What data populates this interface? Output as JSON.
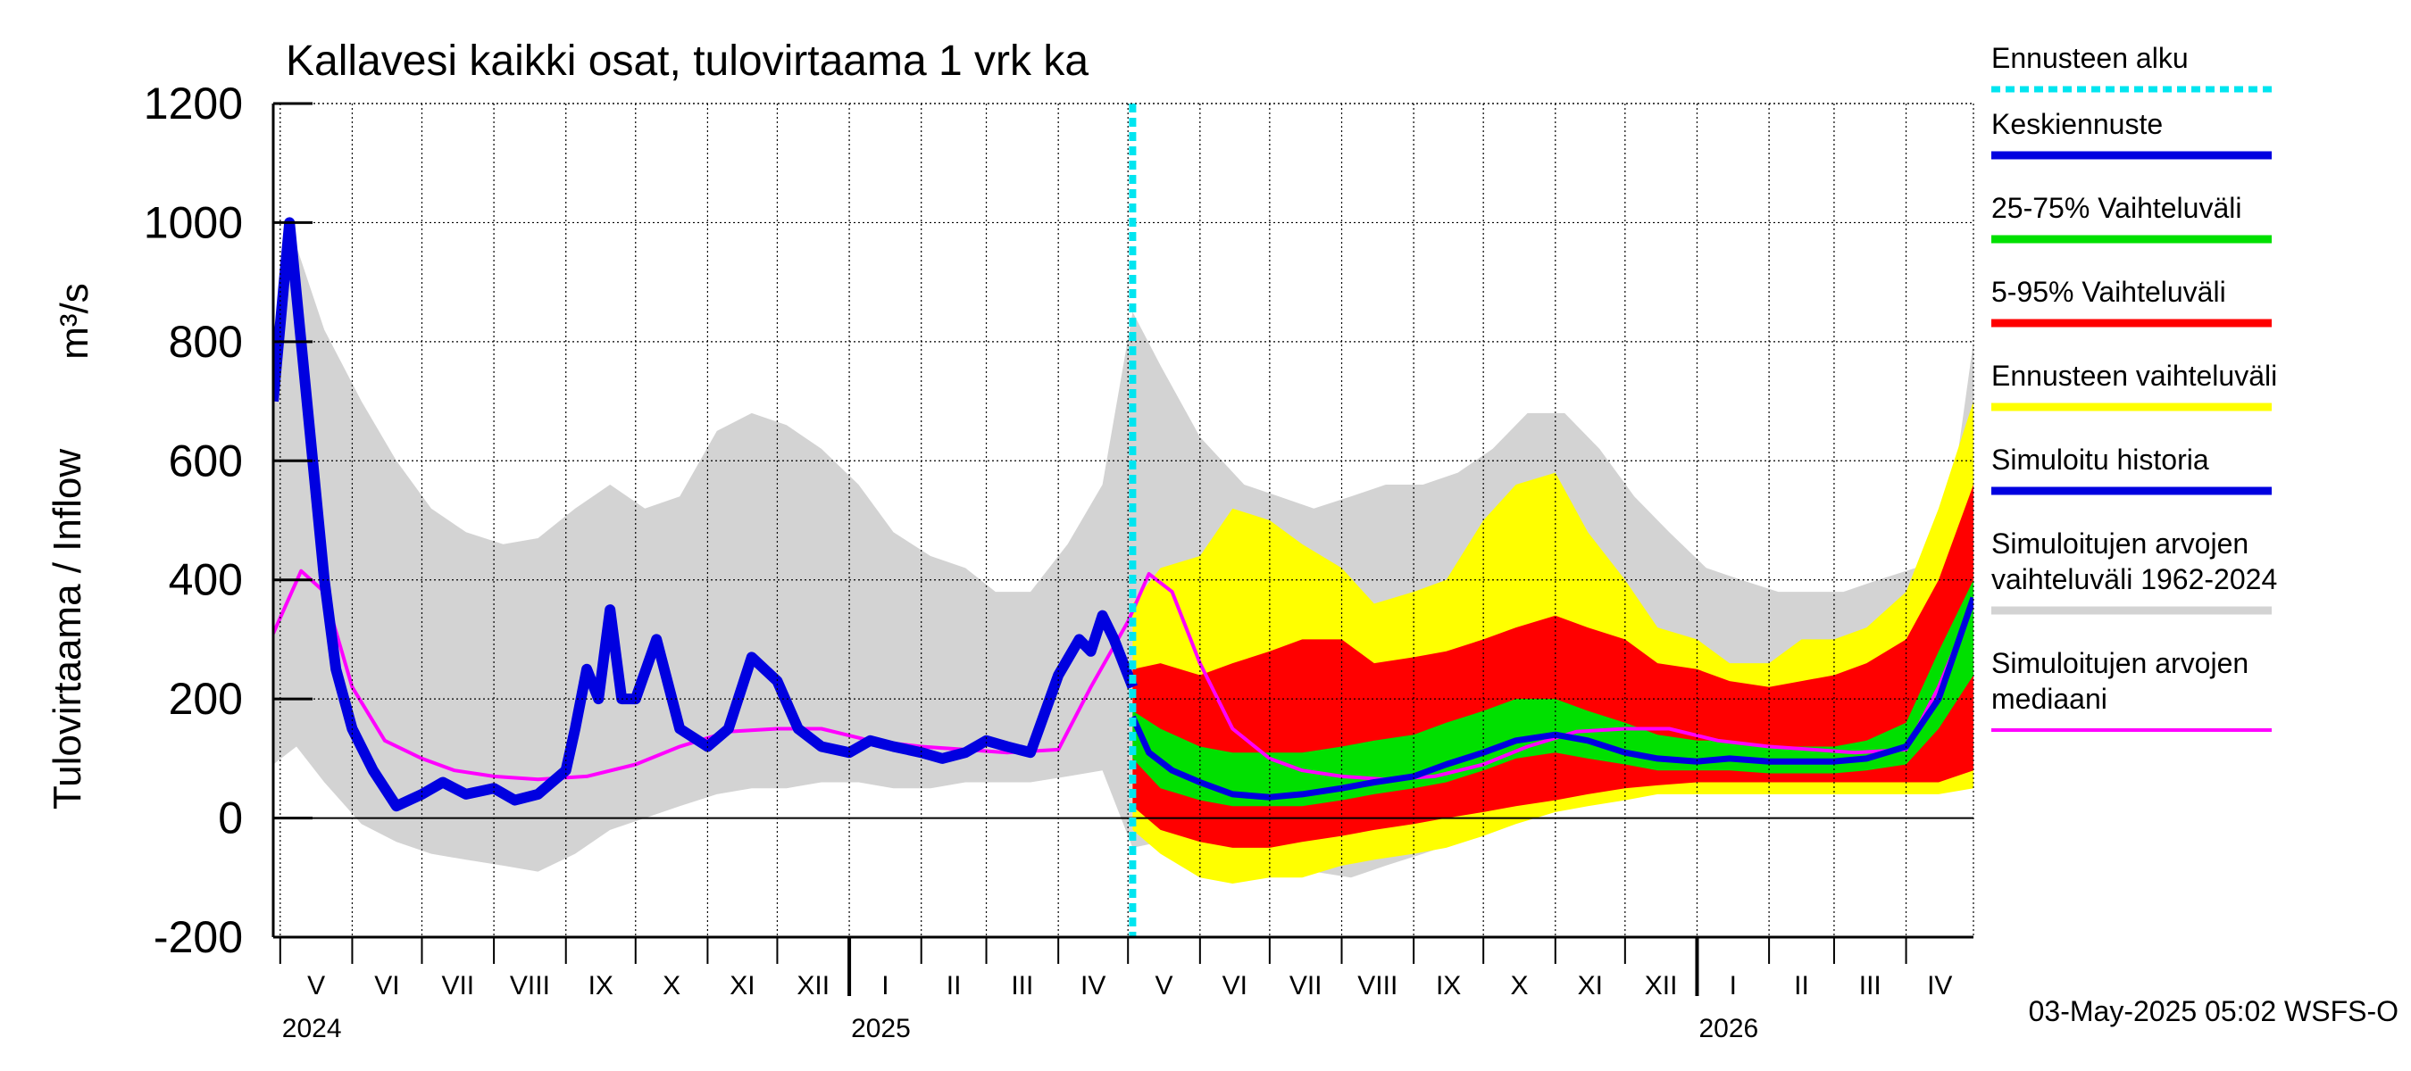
{
  "chart_data": {
    "type": "area",
    "title": "Kallavesi kaikki osat, tulovirtaama 1 vrk ka",
    "ylabel": "Tulovirtaama / Inflow",
    "yunit": "m³/s",
    "ylim": [
      -200,
      1200
    ],
    "yticks": [
      -200,
      0,
      200,
      400,
      600,
      800,
      1000,
      1200
    ],
    "xlim": [
      "2024-04-28",
      "2026-04-30"
    ],
    "grid": true,
    "legend_position": "right",
    "footer": "03-May-2025 05:02 WSFS-O",
    "forecast_start": "2025-05-03",
    "years": [
      {
        "label": "2024",
        "date": "2024-05-01"
      },
      {
        "label": "2025",
        "date": "2025-01-01"
      },
      {
        "label": "2026",
        "date": "2026-01-01"
      }
    ],
    "months": [
      {
        "label": "V",
        "date": "2024-05-01"
      },
      {
        "label": "VI",
        "date": "2024-06-01"
      },
      {
        "label": "VII",
        "date": "2024-07-01"
      },
      {
        "label": "VIII",
        "date": "2024-08-01"
      },
      {
        "label": "IX",
        "date": "2024-09-01"
      },
      {
        "label": "X",
        "date": "2024-10-01"
      },
      {
        "label": "XI",
        "date": "2024-11-01"
      },
      {
        "label": "XII",
        "date": "2024-12-01"
      },
      {
        "label": "I",
        "date": "2025-01-01"
      },
      {
        "label": "II",
        "date": "2025-02-01"
      },
      {
        "label": "III",
        "date": "2025-03-01"
      },
      {
        "label": "IV",
        "date": "2025-04-01"
      },
      {
        "label": "V",
        "date": "2025-05-01"
      },
      {
        "label": "VI",
        "date": "2025-06-01"
      },
      {
        "label": "VII",
        "date": "2025-07-01"
      },
      {
        "label": "VIII",
        "date": "2025-08-01"
      },
      {
        "label": "IX",
        "date": "2025-09-01"
      },
      {
        "label": "X",
        "date": "2025-10-01"
      },
      {
        "label": "XI",
        "date": "2025-11-01"
      },
      {
        "label": "XII",
        "date": "2025-12-01"
      },
      {
        "label": "I",
        "date": "2026-01-01"
      },
      {
        "label": "II",
        "date": "2026-02-01"
      },
      {
        "label": "III",
        "date": "2026-03-01"
      },
      {
        "label": "IV",
        "date": "2026-04-01"
      }
    ],
    "legend": [
      {
        "label": "Ennusteen alku",
        "color": "#00e5f0",
        "style": "dashed"
      },
      {
        "label": "Keskiennuste",
        "color": "#0000e0",
        "style": "solid"
      },
      {
        "label": "25-75% Vaihteluväli",
        "color": "#00e000",
        "style": "solid"
      },
      {
        "label": "5-95% Vaihteluväli",
        "color": "#ff0000",
        "style": "solid"
      },
      {
        "label": "Ennusteen vaihteluväli",
        "color": "#ffff00",
        "style": "solid"
      },
      {
        "label": "Simuloitu historia",
        "color": "#0000e0",
        "style": "solid"
      },
      {
        "label": "Simuloitujen arvojen\nvaihteluväli 1962-2024",
        "color": "#d3d3d3",
        "style": "solid"
      },
      {
        "label": "Simuloitujen arvojen\nmediaani",
        "color": "#ff00ff",
        "style": "solid"
      }
    ],
    "series": [
      {
        "name": "Simuloitujen arvojen vaihteluväli 1962-2024",
        "kind": "band",
        "color": "#d3d3d3",
        "x": [
          "2024-04-28",
          "2024-05-08",
          "2024-05-20",
          "2024-06-05",
          "2024-06-20",
          "2024-07-05",
          "2024-07-20",
          "2024-08-05",
          "2024-08-20",
          "2024-09-05",
          "2024-09-20",
          "2024-10-05",
          "2024-10-20",
          "2024-11-05",
          "2024-11-20",
          "2024-12-05",
          "2024-12-20",
          "2025-01-05",
          "2025-01-20",
          "2025-02-05",
          "2025-02-20",
          "2025-03-05",
          "2025-03-20",
          "2025-04-05",
          "2025-04-20",
          "2025-05-03",
          "2025-05-15",
          "2025-06-01",
          "2025-06-20",
          "2025-07-05",
          "2025-07-20",
          "2025-08-05",
          "2025-08-20",
          "2025-09-05",
          "2025-09-20",
          "2025-10-05",
          "2025-10-20",
          "2025-11-05",
          "2025-11-20",
          "2025-12-05",
          "2025-12-20",
          "2026-01-05",
          "2026-01-20",
          "2026-02-05",
          "2026-02-20",
          "2026-03-05",
          "2026-03-20",
          "2026-04-05",
          "2026-04-20",
          "2026-04-30"
        ],
        "lower": [
          90,
          120,
          60,
          -10,
          -40,
          -60,
          -70,
          -80,
          -90,
          -60,
          -20,
          0,
          20,
          40,
          50,
          50,
          60,
          60,
          50,
          50,
          60,
          60,
          60,
          70,
          80,
          -50,
          -40,
          -40,
          -60,
          -90,
          -90,
          -100,
          -80,
          -60,
          -40,
          -20,
          0,
          20,
          40,
          50,
          50,
          60,
          60,
          50,
          50,
          60,
          60,
          60,
          60,
          70
        ],
        "upper": [
          800,
          960,
          820,
          700,
          600,
          520,
          480,
          460,
          470,
          520,
          560,
          520,
          540,
          650,
          680,
          660,
          620,
          560,
          480,
          440,
          420,
          380,
          380,
          460,
          560,
          850,
          760,
          640,
          560,
          540,
          520,
          540,
          560,
          560,
          580,
          620,
          680,
          680,
          620,
          540,
          480,
          420,
          400,
          380,
          380,
          380,
          400,
          420,
          520,
          800
        ]
      },
      {
        "name": "Ennusteen vaihteluväli",
        "kind": "band",
        "color": "#ffff00",
        "x": [
          "2025-05-03",
          "2025-05-15",
          "2025-06-01",
          "2025-06-15",
          "2025-07-01",
          "2025-07-15",
          "2025-08-01",
          "2025-08-15",
          "2025-09-01",
          "2025-09-15",
          "2025-10-01",
          "2025-10-15",
          "2025-11-01",
          "2025-11-15",
          "2025-12-01",
          "2025-12-15",
          "2026-01-01",
          "2026-01-15",
          "2026-02-01",
          "2026-02-15",
          "2026-03-01",
          "2026-03-15",
          "2026-04-01",
          "2026-04-15",
          "2026-04-30"
        ],
        "lower": [
          -20,
          -60,
          -100,
          -110,
          -100,
          -100,
          -80,
          -70,
          -60,
          -50,
          -30,
          -10,
          10,
          20,
          30,
          40,
          40,
          40,
          40,
          40,
          40,
          40,
          40,
          40,
          50
        ],
        "upper": [
          360,
          420,
          440,
          520,
          500,
          460,
          420,
          360,
          380,
          400,
          500,
          560,
          580,
          480,
          400,
          320,
          300,
          260,
          260,
          300,
          300,
          320,
          380,
          520,
          700
        ]
      },
      {
        "name": "5-95% Vaihteluväli",
        "kind": "band",
        "color": "#ff0000",
        "x": [
          "2025-05-03",
          "2025-05-15",
          "2025-06-01",
          "2025-06-15",
          "2025-07-01",
          "2025-07-15",
          "2025-08-01",
          "2025-08-15",
          "2025-09-01",
          "2025-09-15",
          "2025-10-01",
          "2025-10-15",
          "2025-11-01",
          "2025-11-15",
          "2025-12-01",
          "2025-12-15",
          "2026-01-01",
          "2026-01-15",
          "2026-02-01",
          "2026-02-15",
          "2026-03-01",
          "2026-03-15",
          "2026-04-01",
          "2026-04-15",
          "2026-04-30"
        ],
        "lower": [
          20,
          -20,
          -40,
          -50,
          -50,
          -40,
          -30,
          -20,
          -10,
          0,
          10,
          20,
          30,
          40,
          50,
          55,
          60,
          60,
          60,
          60,
          60,
          60,
          60,
          60,
          80
        ],
        "upper": [
          250,
          260,
          240,
          260,
          280,
          300,
          300,
          260,
          270,
          280,
          300,
          320,
          340,
          320,
          300,
          260,
          250,
          230,
          220,
          230,
          240,
          260,
          300,
          400,
          560
        ]
      },
      {
        "name": "25-75% Vaihteluväli",
        "kind": "band",
        "color": "#00e000",
        "x": [
          "2025-05-03",
          "2025-05-15",
          "2025-06-01",
          "2025-06-15",
          "2025-07-01",
          "2025-07-15",
          "2025-08-01",
          "2025-08-15",
          "2025-09-01",
          "2025-09-15",
          "2025-10-01",
          "2025-10-15",
          "2025-11-01",
          "2025-11-15",
          "2025-12-01",
          "2025-12-15",
          "2026-01-01",
          "2026-01-15",
          "2026-02-01",
          "2026-02-15",
          "2026-03-01",
          "2026-03-15",
          "2026-04-01",
          "2026-04-15",
          "2026-04-30"
        ],
        "lower": [
          100,
          50,
          30,
          20,
          20,
          20,
          30,
          40,
          50,
          60,
          80,
          100,
          110,
          100,
          90,
          80,
          80,
          80,
          75,
          75,
          75,
          80,
          90,
          150,
          240
        ],
        "upper": [
          180,
          150,
          120,
          110,
          110,
          110,
          120,
          130,
          140,
          160,
          180,
          200,
          200,
          180,
          160,
          140,
          130,
          130,
          120,
          120,
          120,
          130,
          160,
          280,
          400
        ]
      },
      {
        "name": "Simuloitujen arvojen mediaani",
        "kind": "line",
        "color": "#ff00ff",
        "x": [
          "2024-04-28",
          "2024-05-10",
          "2024-05-20",
          "2024-06-01",
          "2024-06-15",
          "2024-07-01",
          "2024-07-15",
          "2024-08-01",
          "2024-08-20",
          "2024-09-10",
          "2024-10-01",
          "2024-10-20",
          "2024-11-10",
          "2024-12-01",
          "2024-12-20",
          "2025-01-10",
          "2025-02-01",
          "2025-02-20",
          "2025-03-10",
          "2025-04-01",
          "2025-04-15",
          "2025-05-01",
          "2025-05-10",
          "2025-05-20",
          "2025-06-01",
          "2025-06-15",
          "2025-07-01",
          "2025-07-15",
          "2025-08-01",
          "2025-08-20",
          "2025-09-10",
          "2025-10-01",
          "2025-10-20",
          "2025-11-10",
          "2025-12-01",
          "2025-12-20",
          "2026-01-10",
          "2026-02-01",
          "2026-02-20",
          "2026-03-10",
          "2026-04-01",
          "2026-04-15",
          "2026-04-30"
        ],
        "values": [
          310,
          415,
          380,
          220,
          130,
          100,
          80,
          70,
          65,
          70,
          90,
          120,
          145,
          150,
          150,
          130,
          120,
          115,
          110,
          115,
          220,
          330,
          410,
          380,
          260,
          150,
          100,
          80,
          70,
          65,
          70,
          90,
          120,
          145,
          150,
          150,
          130,
          120,
          115,
          110,
          115,
          220,
          360
        ]
      },
      {
        "name": "Simuloitu historia",
        "kind": "line",
        "color": "#0000e0",
        "x": [
          "2024-04-28",
          "2024-05-05",
          "2024-05-10",
          "2024-05-15",
          "2024-05-20",
          "2024-05-25",
          "2024-06-01",
          "2024-06-10",
          "2024-06-20",
          "2024-07-01",
          "2024-07-10",
          "2024-07-20",
          "2024-08-01",
          "2024-08-10",
          "2024-08-20",
          "2024-09-01",
          "2024-09-05",
          "2024-09-10",
          "2024-09-15",
          "2024-09-20",
          "2024-09-25",
          "2024-10-01",
          "2024-10-10",
          "2024-10-20",
          "2024-11-01",
          "2024-11-10",
          "2024-11-20",
          "2024-12-01",
          "2024-12-10",
          "2024-12-20",
          "2025-01-01",
          "2025-01-10",
          "2025-01-20",
          "2025-02-01",
          "2025-02-10",
          "2025-02-20",
          "2025-03-01",
          "2025-03-10",
          "2025-03-20",
          "2025-04-01",
          "2025-04-10",
          "2025-04-15",
          "2025-04-20",
          "2025-04-25",
          "2025-05-03"
        ],
        "values": [
          700,
          1000,
          800,
          600,
          400,
          250,
          150,
          80,
          20,
          40,
          60,
          40,
          50,
          30,
          40,
          80,
          150,
          250,
          200,
          350,
          200,
          200,
          300,
          150,
          120,
          150,
          270,
          230,
          150,
          120,
          110,
          130,
          120,
          110,
          100,
          110,
          130,
          120,
          110,
          240,
          300,
          280,
          340,
          300,
          220
        ]
      },
      {
        "name": "Keskiennuste",
        "kind": "line",
        "color": "#0000e0",
        "x": [
          "2025-05-03",
          "2025-05-10",
          "2025-05-20",
          "2025-06-01",
          "2025-06-15",
          "2025-07-01",
          "2025-07-15",
          "2025-08-01",
          "2025-08-15",
          "2025-09-01",
          "2025-09-15",
          "2025-10-01",
          "2025-10-15",
          "2025-11-01",
          "2025-11-15",
          "2025-12-01",
          "2025-12-15",
          "2026-01-01",
          "2026-01-15",
          "2026-02-01",
          "2026-02-15",
          "2026-03-01",
          "2026-03-15",
          "2026-04-01",
          "2026-04-15",
          "2026-04-30"
        ],
        "values": [
          170,
          110,
          80,
          60,
          40,
          35,
          40,
          50,
          60,
          70,
          90,
          110,
          130,
          140,
          130,
          110,
          100,
          95,
          100,
          95,
          95,
          95,
          100,
          120,
          200,
          370
        ]
      }
    ]
  }
}
